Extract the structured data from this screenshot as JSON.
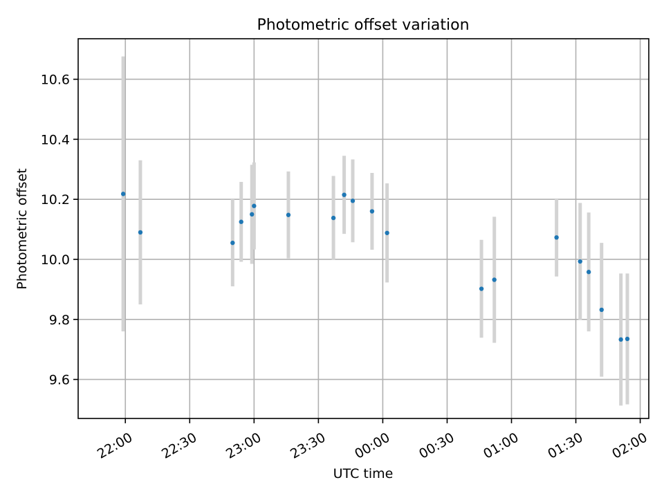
{
  "chart_data": {
    "type": "scatter",
    "title": "Photometric offset variation",
    "xlabel": "UTC time",
    "ylabel": "Photometric offset",
    "x_is_time": true,
    "xlim": [
      "21:38",
      "02:04"
    ],
    "ylim": [
      9.47,
      10.735
    ],
    "x_ticks": [
      "22:00",
      "22:30",
      "23:00",
      "23:30",
      "00:00",
      "00:30",
      "01:00",
      "01:30",
      "02:00"
    ],
    "y_ticks": [
      9.6,
      9.8,
      10.0,
      10.2,
      10.4,
      10.6
    ],
    "y_tick_labels": [
      "9.6",
      "9.8",
      "10.0",
      "10.2",
      "10.4",
      "10.6"
    ],
    "grid": true,
    "point_color": "#1f77b4",
    "errorbar_color": "#d3d3d3",
    "series": [
      {
        "x": [
          "21:59",
          "22:07",
          "22:50",
          "22:54",
          "22:59",
          "23:00",
          "23:16",
          "23:37",
          "23:42",
          "23:46",
          "23:55",
          "00:02",
          "00:46",
          "00:52",
          "01:21",
          "01:32",
          "01:36",
          "01:42",
          "01:51",
          "01:54"
        ],
        "y": [
          10.218,
          10.09,
          10.055,
          10.125,
          10.15,
          10.178,
          10.148,
          10.138,
          10.215,
          10.195,
          10.16,
          10.088,
          9.902,
          9.932,
          10.073,
          9.993,
          9.958,
          9.832,
          9.733,
          9.735
        ],
        "yerr": [
          0.458,
          0.24,
          0.145,
          0.133,
          0.165,
          0.145,
          0.145,
          0.14,
          0.13,
          0.138,
          0.128,
          0.165,
          0.163,
          0.21,
          0.13,
          0.195,
          0.198,
          0.223,
          0.22,
          0.218
        ]
      }
    ]
  }
}
